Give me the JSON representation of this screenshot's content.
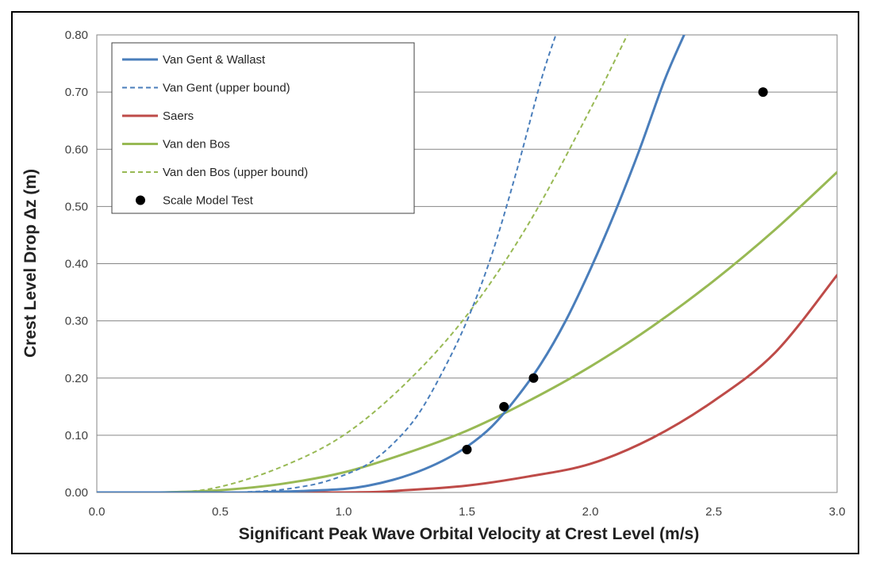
{
  "chart_data": {
    "type": "line",
    "xlabel": "Significant Peak Wave Orbital Velocity at Crest Level (m/s)",
    "ylabel": "Crest Level Drop Δz (m)",
    "xlim": [
      0.0,
      3.0
    ],
    "ylim": [
      0.0,
      0.8
    ],
    "x_ticks": [
      "0.0",
      "0.5",
      "1.0",
      "1.5",
      "2.0",
      "2.5",
      "3.0"
    ],
    "y_ticks": [
      "0.00",
      "0.10",
      "0.20",
      "0.30",
      "0.40",
      "0.50",
      "0.60",
      "0.70",
      "0.80"
    ],
    "grid": "horizontal",
    "legend_position": "top-left",
    "series": [
      {
        "name": "Van Gent & Wallast",
        "style": "solid",
        "color": "#4a7ebb",
        "x": [
          0.0,
          0.4,
          0.6,
          0.8,
          1.0,
          1.1,
          1.2,
          1.3,
          1.4,
          1.5,
          1.6,
          1.7,
          1.8,
          1.9,
          2.0,
          2.1,
          2.2,
          2.3,
          2.38
        ],
        "y": [
          0.0,
          0.0,
          0.0,
          0.002,
          0.006,
          0.012,
          0.022,
          0.036,
          0.055,
          0.08,
          0.115,
          0.165,
          0.225,
          0.3,
          0.39,
          0.49,
          0.6,
          0.72,
          0.8
        ]
      },
      {
        "name": "Van Gent (upper bound)",
        "style": "dashed",
        "color": "#4a7ebb",
        "x": [
          0.0,
          0.5,
          0.7,
          0.8,
          0.9,
          1.0,
          1.1,
          1.2,
          1.3,
          1.4,
          1.5,
          1.6,
          1.7,
          1.8,
          1.86
        ],
        "y": [
          0.0,
          0.0,
          0.003,
          0.008,
          0.016,
          0.03,
          0.05,
          0.085,
          0.135,
          0.21,
          0.3,
          0.415,
          0.56,
          0.72,
          0.8
        ]
      },
      {
        "name": "Saers",
        "style": "solid",
        "color": "#be4b48",
        "x": [
          0.0,
          1.0,
          1.25,
          1.5,
          1.75,
          2.0,
          2.25,
          2.5,
          2.75,
          3.0
        ],
        "y": [
          0.0,
          0.0,
          0.004,
          0.012,
          0.028,
          0.05,
          0.095,
          0.16,
          0.245,
          0.38
        ]
      },
      {
        "name": "Van den Bos",
        "style": "solid",
        "color": "#98b954",
        "x": [
          0.0,
          0.25,
          0.5,
          0.75,
          1.0,
          1.25,
          1.5,
          1.75,
          2.0,
          2.25,
          2.5,
          2.75,
          3.0
        ],
        "y": [
          0.0,
          0.0,
          0.004,
          0.015,
          0.035,
          0.068,
          0.108,
          0.16,
          0.22,
          0.29,
          0.37,
          0.46,
          0.56
        ]
      },
      {
        "name": "Van den Bos (upper bound)",
        "style": "dashed",
        "color": "#98b954",
        "x": [
          0.0,
          0.3,
          0.5,
          0.75,
          1.0,
          1.25,
          1.5,
          1.75,
          2.0,
          2.15
        ],
        "y": [
          0.0,
          0.0,
          0.01,
          0.045,
          0.1,
          0.19,
          0.31,
          0.47,
          0.67,
          0.8
        ]
      }
    ],
    "points": {
      "name": "Scale Model Test",
      "color": "#000000",
      "x": [
        1.5,
        1.65,
        1.77,
        2.7
      ],
      "y": [
        0.075,
        0.15,
        0.2,
        0.7
      ]
    }
  }
}
